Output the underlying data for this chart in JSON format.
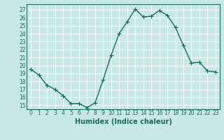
{
  "x": [
    0,
    1,
    2,
    3,
    4,
    5,
    6,
    7,
    8,
    9,
    10,
    11,
    12,
    13,
    14,
    15,
    16,
    17,
    18,
    19,
    20,
    21,
    22,
    23
  ],
  "y": [
    19.5,
    18.8,
    17.5,
    17.0,
    16.2,
    15.2,
    15.2,
    14.7,
    15.3,
    18.2,
    21.3,
    24.0,
    25.5,
    27.1,
    26.1,
    26.2,
    26.9,
    26.3,
    24.8,
    22.5,
    20.3,
    20.4,
    19.3,
    19.2
  ],
  "line_color": "#1a6b5a",
  "marker": "+",
  "markersize": 4,
  "linewidth": 1.0,
  "bg_color": "#c8e8e5",
  "grid_color": "#ffffff",
  "xlabel": "Humidex (Indice chaleur)",
  "xlim": [
    -0.5,
    23.5
  ],
  "ylim": [
    14.5,
    27.7
  ],
  "yticks": [
    15,
    16,
    17,
    18,
    19,
    20,
    21,
    22,
    23,
    24,
    25,
    26,
    27
  ],
  "xticks": [
    0,
    1,
    2,
    3,
    4,
    5,
    6,
    7,
    8,
    9,
    10,
    11,
    12,
    13,
    14,
    15,
    16,
    17,
    18,
    19,
    20,
    21,
    22,
    23
  ],
  "tick_fontsize": 5.5,
  "xlabel_fontsize": 7,
  "tick_color": "#1a6b5a",
  "xlabel_color": "#1a6b5a",
  "spine_color": "#1a6b5a"
}
